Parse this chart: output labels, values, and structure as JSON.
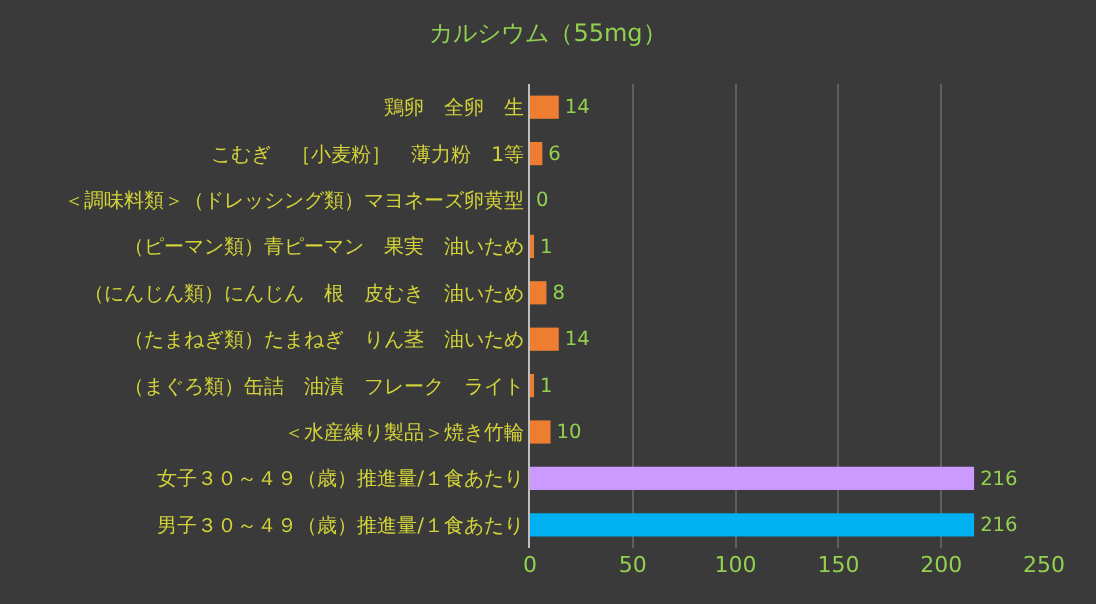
{
  "chart_data": {
    "type": "bar",
    "orientation": "horizontal",
    "title": "カルシウム（55mg）",
    "categories": [
      "鶏卵　全卵　生",
      "こむぎ　［小麦粉］　薄力粉　1等",
      "＜調味料類＞（ドレッシング類）マヨネーズ卵黄型",
      "（ピーマン類）青ピーマン　果実　油いため",
      "（にんじん類）にんじん　根　皮むき　油いため",
      "（たまねぎ類）たまねぎ　りん茎　油いため",
      "（まぐろ類）缶詰　油漬　フレーク　ライト",
      "＜水産練り製品＞焼き竹輪",
      "女子３０～４９（歳）推進量/１食あたり",
      "男子３０～４９（歳）推進量/１食あたり"
    ],
    "values": [
      14,
      6,
      0,
      1,
      8,
      14,
      1,
      10,
      216,
      216
    ],
    "colors": [
      "#ed7d31",
      "#ed7d31",
      "#ed7d31",
      "#ed7d31",
      "#ed7d31",
      "#ed7d31",
      "#ed7d31",
      "#ed7d31",
      "#cc99ff",
      "#00b0f0"
    ],
    "data_labels": true,
    "xlim": [
      0,
      250
    ],
    "xticks": [
      0,
      50,
      100,
      150,
      200,
      250
    ],
    "grid": "x"
  }
}
